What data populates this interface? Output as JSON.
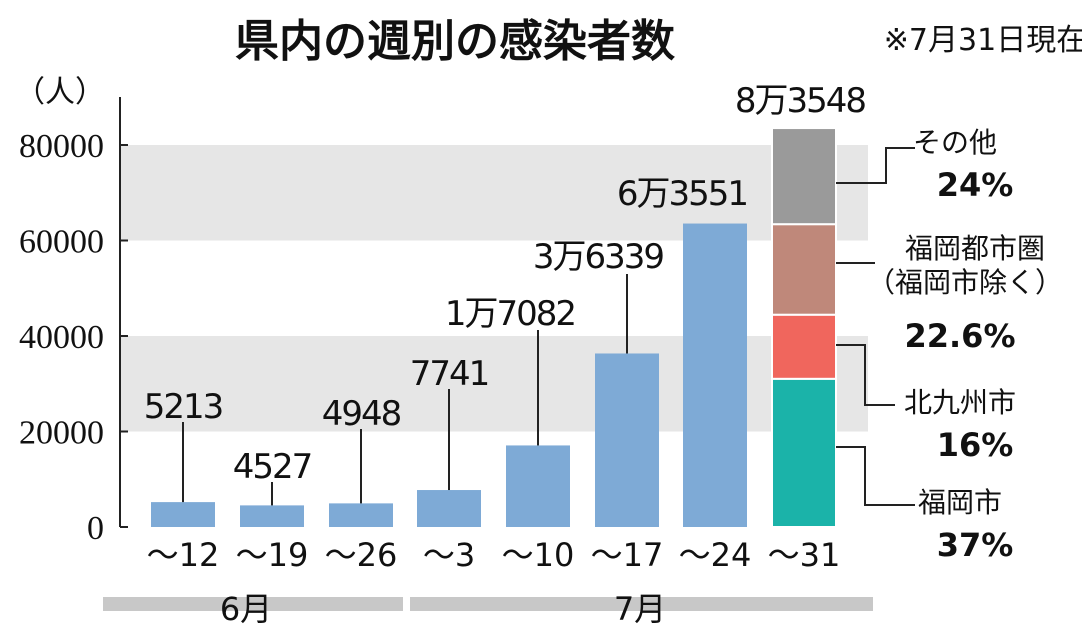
{
  "chart_data": {
    "type": "bar",
    "title": "県内の週別の感染者数",
    "note": "※7月31日現在",
    "ylabel": "（人）",
    "ylim": [
      0,
      80000
    ],
    "yticks": [
      "0",
      "20000",
      "40000",
      "60000",
      "80000"
    ],
    "categories": [
      "~12",
      "~19",
      "~26",
      "~3",
      "~10",
      "~17",
      "~24",
      "~31"
    ],
    "months": [
      {
        "label": "6月",
        "span": [
          "~12",
          "~26"
        ]
      },
      {
        "label": "7月",
        "span": [
          "~3",
          "~31"
        ]
      }
    ],
    "values": [
      5213,
      4527,
      4948,
      7741,
      17082,
      36339,
      63551,
      83548
    ],
    "value_labels": [
      "5213",
      "4527",
      "4948",
      "7741",
      "1万7082",
      "3万6339",
      "6万3551",
      "8万3548"
    ],
    "bar_color": "#7eaad6",
    "grid_bands": [
      [
        20000,
        40000
      ],
      [
        60000,
        80000
      ]
    ],
    "band_color": "#e6e6e6",
    "last_bar_breakdown": [
      {
        "name": "福岡市",
        "percent_label": "37%",
        "percent": 37,
        "color": "#1bb3a9"
      },
      {
        "name": "北九州市",
        "percent_label": "16%",
        "percent": 16,
        "color": "#f0665d"
      },
      {
        "name": "福岡都市圏",
        "name2": "（福岡市除く）",
        "percent_label": "22.6%",
        "percent": 22.6,
        "color": "#bf887a"
      },
      {
        "name": "その他",
        "percent_label": "24%",
        "percent": 24,
        "color": "#9a9a9a"
      }
    ]
  }
}
